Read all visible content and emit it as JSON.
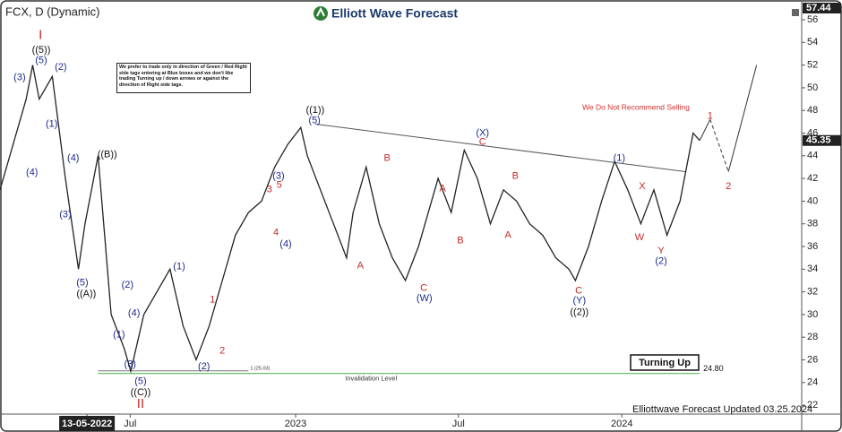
{
  "chart_data": {
    "type": "line",
    "title": "FCX, D (Dynamic)",
    "brand": "Elliott Wave Forecast",
    "footer": "Elliottwave Forecast Updated 03.25.2024",
    "warning": "We Do Not Recommend Selling",
    "badge": "Turning Up",
    "note": "We prefer to trade only in direction of Green / Red Right side tags entering at Blue boxes and we don't like trading Turning up / down arrows or against the direction of Right side tags.",
    "xlim": [
      0,
      122.6
    ],
    "ylim": [
      21.22,
      57.74
    ],
    "yticks": [
      22,
      24,
      26,
      28,
      30,
      32,
      34,
      36,
      38,
      40,
      42,
      44,
      46,
      48,
      50,
      52,
      54,
      56
    ],
    "xticks": [
      {
        "value": 13.3,
        "label": "13-05-2022"
      },
      {
        "value": 19.9,
        "label": "Jul"
      },
      {
        "value": 45.2,
        "label": "2023"
      },
      {
        "value": 70.1,
        "label": "Jul"
      },
      {
        "value": 95.1,
        "label": "2024"
      }
    ],
    "top_price": 57.44,
    "last_price": 45.35,
    "series": [
      {
        "color": "#222222",
        "x": [
          0,
          2,
          4,
          5,
          6,
          8,
          10,
          12,
          13,
          15,
          17,
          19,
          20,
          22,
          24,
          26,
          28,
          30,
          32,
          34,
          36,
          38,
          40,
          42,
          44,
          46,
          47,
          49,
          51,
          53,
          54,
          56,
          58,
          60,
          62,
          64,
          65,
          67,
          69,
          71,
          73,
          75,
          77,
          79,
          81,
          83,
          85,
          87,
          88,
          90,
          92,
          94,
          96,
          98,
          100,
          102,
          104,
          106,
          107
        ],
        "values": [
          41,
          45,
          49,
          52,
          49,
          51,
          42,
          34,
          38,
          44,
          30,
          27,
          25,
          30,
          32,
          34,
          29,
          26,
          29,
          33,
          37,
          39,
          40,
          43,
          45,
          46.5,
          44,
          41,
          38,
          35,
          39,
          43,
          38,
          35,
          33,
          36,
          38,
          42,
          39,
          44.5,
          42,
          38,
          41,
          40,
          38,
          37,
          35,
          34,
          33,
          36,
          40,
          43.5,
          41,
          38,
          41,
          37,
          40,
          46,
          45.35
        ]
      }
    ],
    "projection": {
      "color": "#333333",
      "x": [
        107,
        108.6,
        111.4,
        115.7
      ],
      "values": [
        45.35,
        47.2,
        42.6,
        52
      ]
    },
    "trendline": {
      "color": "#555555",
      "x": [
        48.2,
        104.8
      ],
      "values": [
        46.8,
        42.6
      ]
    },
    "invalidation": {
      "label": "Invalidation Level",
      "value": 24.8,
      "value_label": "24.80",
      "color": "#5cb85c",
      "x": [
        15,
        107
      ]
    },
    "marker": {
      "label": "1 (25.03)",
      "value": 25.03,
      "x": [
        15,
        38
      ]
    },
    "waves": [
      {
        "text": "I",
        "x": 6.2,
        "y": 54.6,
        "color": "#c62828"
      },
      {
        "text": "((5))",
        "x": 6.3,
        "y": 53.3,
        "color": "#111111"
      },
      {
        "text": "(5)",
        "x": 6.3,
        "y": 52.4,
        "color": "#1c2a8c"
      },
      {
        "text": "(3)",
        "x": 3.0,
        "y": 50.9,
        "color": "#1c2a8c"
      },
      {
        "text": "(2)",
        "x": 9.3,
        "y": 51.8,
        "color": "#1c2a8c"
      },
      {
        "text": "(1)",
        "x": 7.9,
        "y": 46.8,
        "color": "#1c2a8c"
      },
      {
        "text": "(4)",
        "x": 4.9,
        "y": 42.5,
        "color": "#1c2a8c"
      },
      {
        "text": "(4)",
        "x": 11.2,
        "y": 43.8,
        "color": "#1c2a8c"
      },
      {
        "text": "(3)",
        "x": 10.0,
        "y": 38.8,
        "color": "#1c2a8c"
      },
      {
        "text": "((B))",
        "x": 16.4,
        "y": 44.1,
        "color": "#111111"
      },
      {
        "text": "(5)",
        "x": 12.6,
        "y": 32.8,
        "color": "#1c2a8c"
      },
      {
        "text": "((A))",
        "x": 13.2,
        "y": 31.8,
        "color": "#111111"
      },
      {
        "text": "(2)",
        "x": 19.5,
        "y": 32.6,
        "color": "#1c2a8c"
      },
      {
        "text": "(4)",
        "x": 20.5,
        "y": 30.1,
        "color": "#1c2a8c"
      },
      {
        "text": "(1)",
        "x": 18.2,
        "y": 28.2,
        "color": "#1c2a8c"
      },
      {
        "text": "(3)",
        "x": 19.9,
        "y": 25.6,
        "color": "#1c2a8c"
      },
      {
        "text": "(5)",
        "x": 21.5,
        "y": 24.1,
        "color": "#1c2a8c"
      },
      {
        "text": "((C))",
        "x": 21.5,
        "y": 23.1,
        "color": "#111111"
      },
      {
        "text": "II",
        "x": 21.5,
        "y": 22.1,
        "color": "#c62828"
      },
      {
        "text": "(1)",
        "x": 27.4,
        "y": 34.2,
        "color": "#1c2a8c"
      },
      {
        "text": "1",
        "x": 32.5,
        "y": 31.3,
        "color": "#c62828"
      },
      {
        "text": "2",
        "x": 34.0,
        "y": 26.8,
        "color": "#c62828"
      },
      {
        "text": "(2)",
        "x": 31.2,
        "y": 25.4,
        "color": "#1c2a8c"
      },
      {
        "text": "(3)",
        "x": 42.6,
        "y": 42.2,
        "color": "#1c2a8c"
      },
      {
        "text": "3",
        "x": 41.2,
        "y": 41.0,
        "color": "#c62828"
      },
      {
        "text": "5",
        "x": 42.7,
        "y": 41.4,
        "color": "#c62828"
      },
      {
        "text": "4",
        "x": 42.2,
        "y": 37.2,
        "color": "#c62828"
      },
      {
        "text": "(4)",
        "x": 43.7,
        "y": 36.2,
        "color": "#1c2a8c"
      },
      {
        "text": "((1))",
        "x": 48.2,
        "y": 48.0,
        "color": "#111111"
      },
      {
        "text": "(5)",
        "x": 48.1,
        "y": 47.1,
        "color": "#1c2a8c"
      },
      {
        "text": "A",
        "x": 55.1,
        "y": 34.3,
        "color": "#c62828"
      },
      {
        "text": "B",
        "x": 59.2,
        "y": 43.8,
        "color": "#c62828"
      },
      {
        "text": "C",
        "x": 64.8,
        "y": 32.3,
        "color": "#c62828"
      },
      {
        "text": "(W)",
        "x": 64.9,
        "y": 31.4,
        "color": "#1c2a8c"
      },
      {
        "text": "A",
        "x": 67.7,
        "y": 41.1,
        "color": "#c62828"
      },
      {
        "text": "B",
        "x": 70.4,
        "y": 36.5,
        "color": "#c62828"
      },
      {
        "text": "(X)",
        "x": 73.8,
        "y": 46.0,
        "color": "#1c2a8c"
      },
      {
        "text": "C",
        "x": 73.8,
        "y": 45.2,
        "color": "#c62828"
      },
      {
        "text": "B",
        "x": 78.8,
        "y": 42.2,
        "color": "#c62828"
      },
      {
        "text": "A",
        "x": 77.7,
        "y": 37.0,
        "color": "#c62828"
      },
      {
        "text": "C",
        "x": 88.5,
        "y": 32.1,
        "color": "#c62828"
      },
      {
        "text": "(Y)",
        "x": 88.6,
        "y": 31.2,
        "color": "#1c2a8c"
      },
      {
        "text": "((2))",
        "x": 88.6,
        "y": 30.2,
        "color": "#111111"
      },
      {
        "text": "(1)",
        "x": 94.7,
        "y": 43.8,
        "color": "#1c2a8c"
      },
      {
        "text": "X",
        "x": 98.2,
        "y": 41.3,
        "color": "#c62828"
      },
      {
        "text": "W",
        "x": 97.8,
        "y": 36.8,
        "color": "#c62828"
      },
      {
        "text": "Y",
        "x": 101.1,
        "y": 35.6,
        "color": "#c62828"
      },
      {
        "text": "(2)",
        "x": 101.1,
        "y": 34.7,
        "color": "#1c2a8c"
      },
      {
        "text": "1",
        "x": 108.6,
        "y": 47.5,
        "color": "#c62828"
      },
      {
        "text": "2",
        "x": 111.4,
        "y": 41.3,
        "color": "#c62828"
      }
    ]
  }
}
